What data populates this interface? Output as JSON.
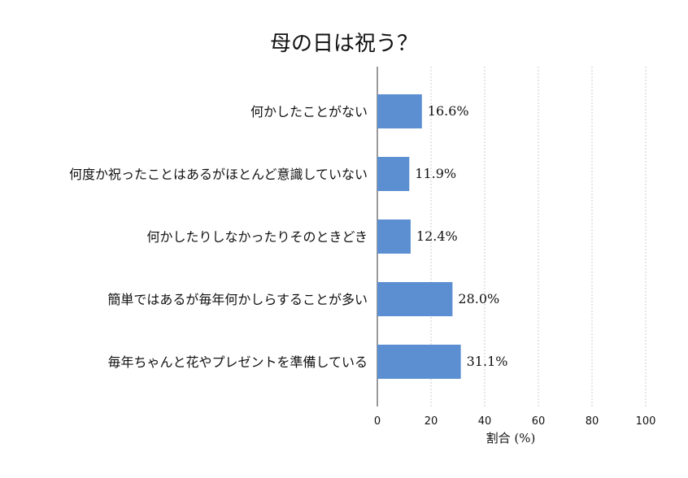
{
  "chart_data": {
    "type": "bar",
    "orientation": "horizontal",
    "title": "母の日は祝う？",
    "xlabel": "割合 (%)",
    "ylabel": "",
    "xlim": [
      0,
      100
    ],
    "xticks": [
      "0",
      "20",
      "40",
      "60",
      "80",
      "100"
    ],
    "grid": true,
    "bar_color": "#5b8fd1",
    "categories": [
      "何かしたことがない",
      "何度か祝ったことはあるがほとんど意識していない",
      "何かしたりしなかったりそのときどき",
      "簡単ではあるが毎年何かしらすることが多い",
      "毎年ちゃんと花やプレゼントを準備している"
    ],
    "values": [
      16.6,
      11.9,
      12.4,
      28.0,
      31.1
    ],
    "value_labels": [
      "16.6%",
      "11.9%",
      "12.4%",
      "28.0%",
      "31.1%"
    ]
  }
}
